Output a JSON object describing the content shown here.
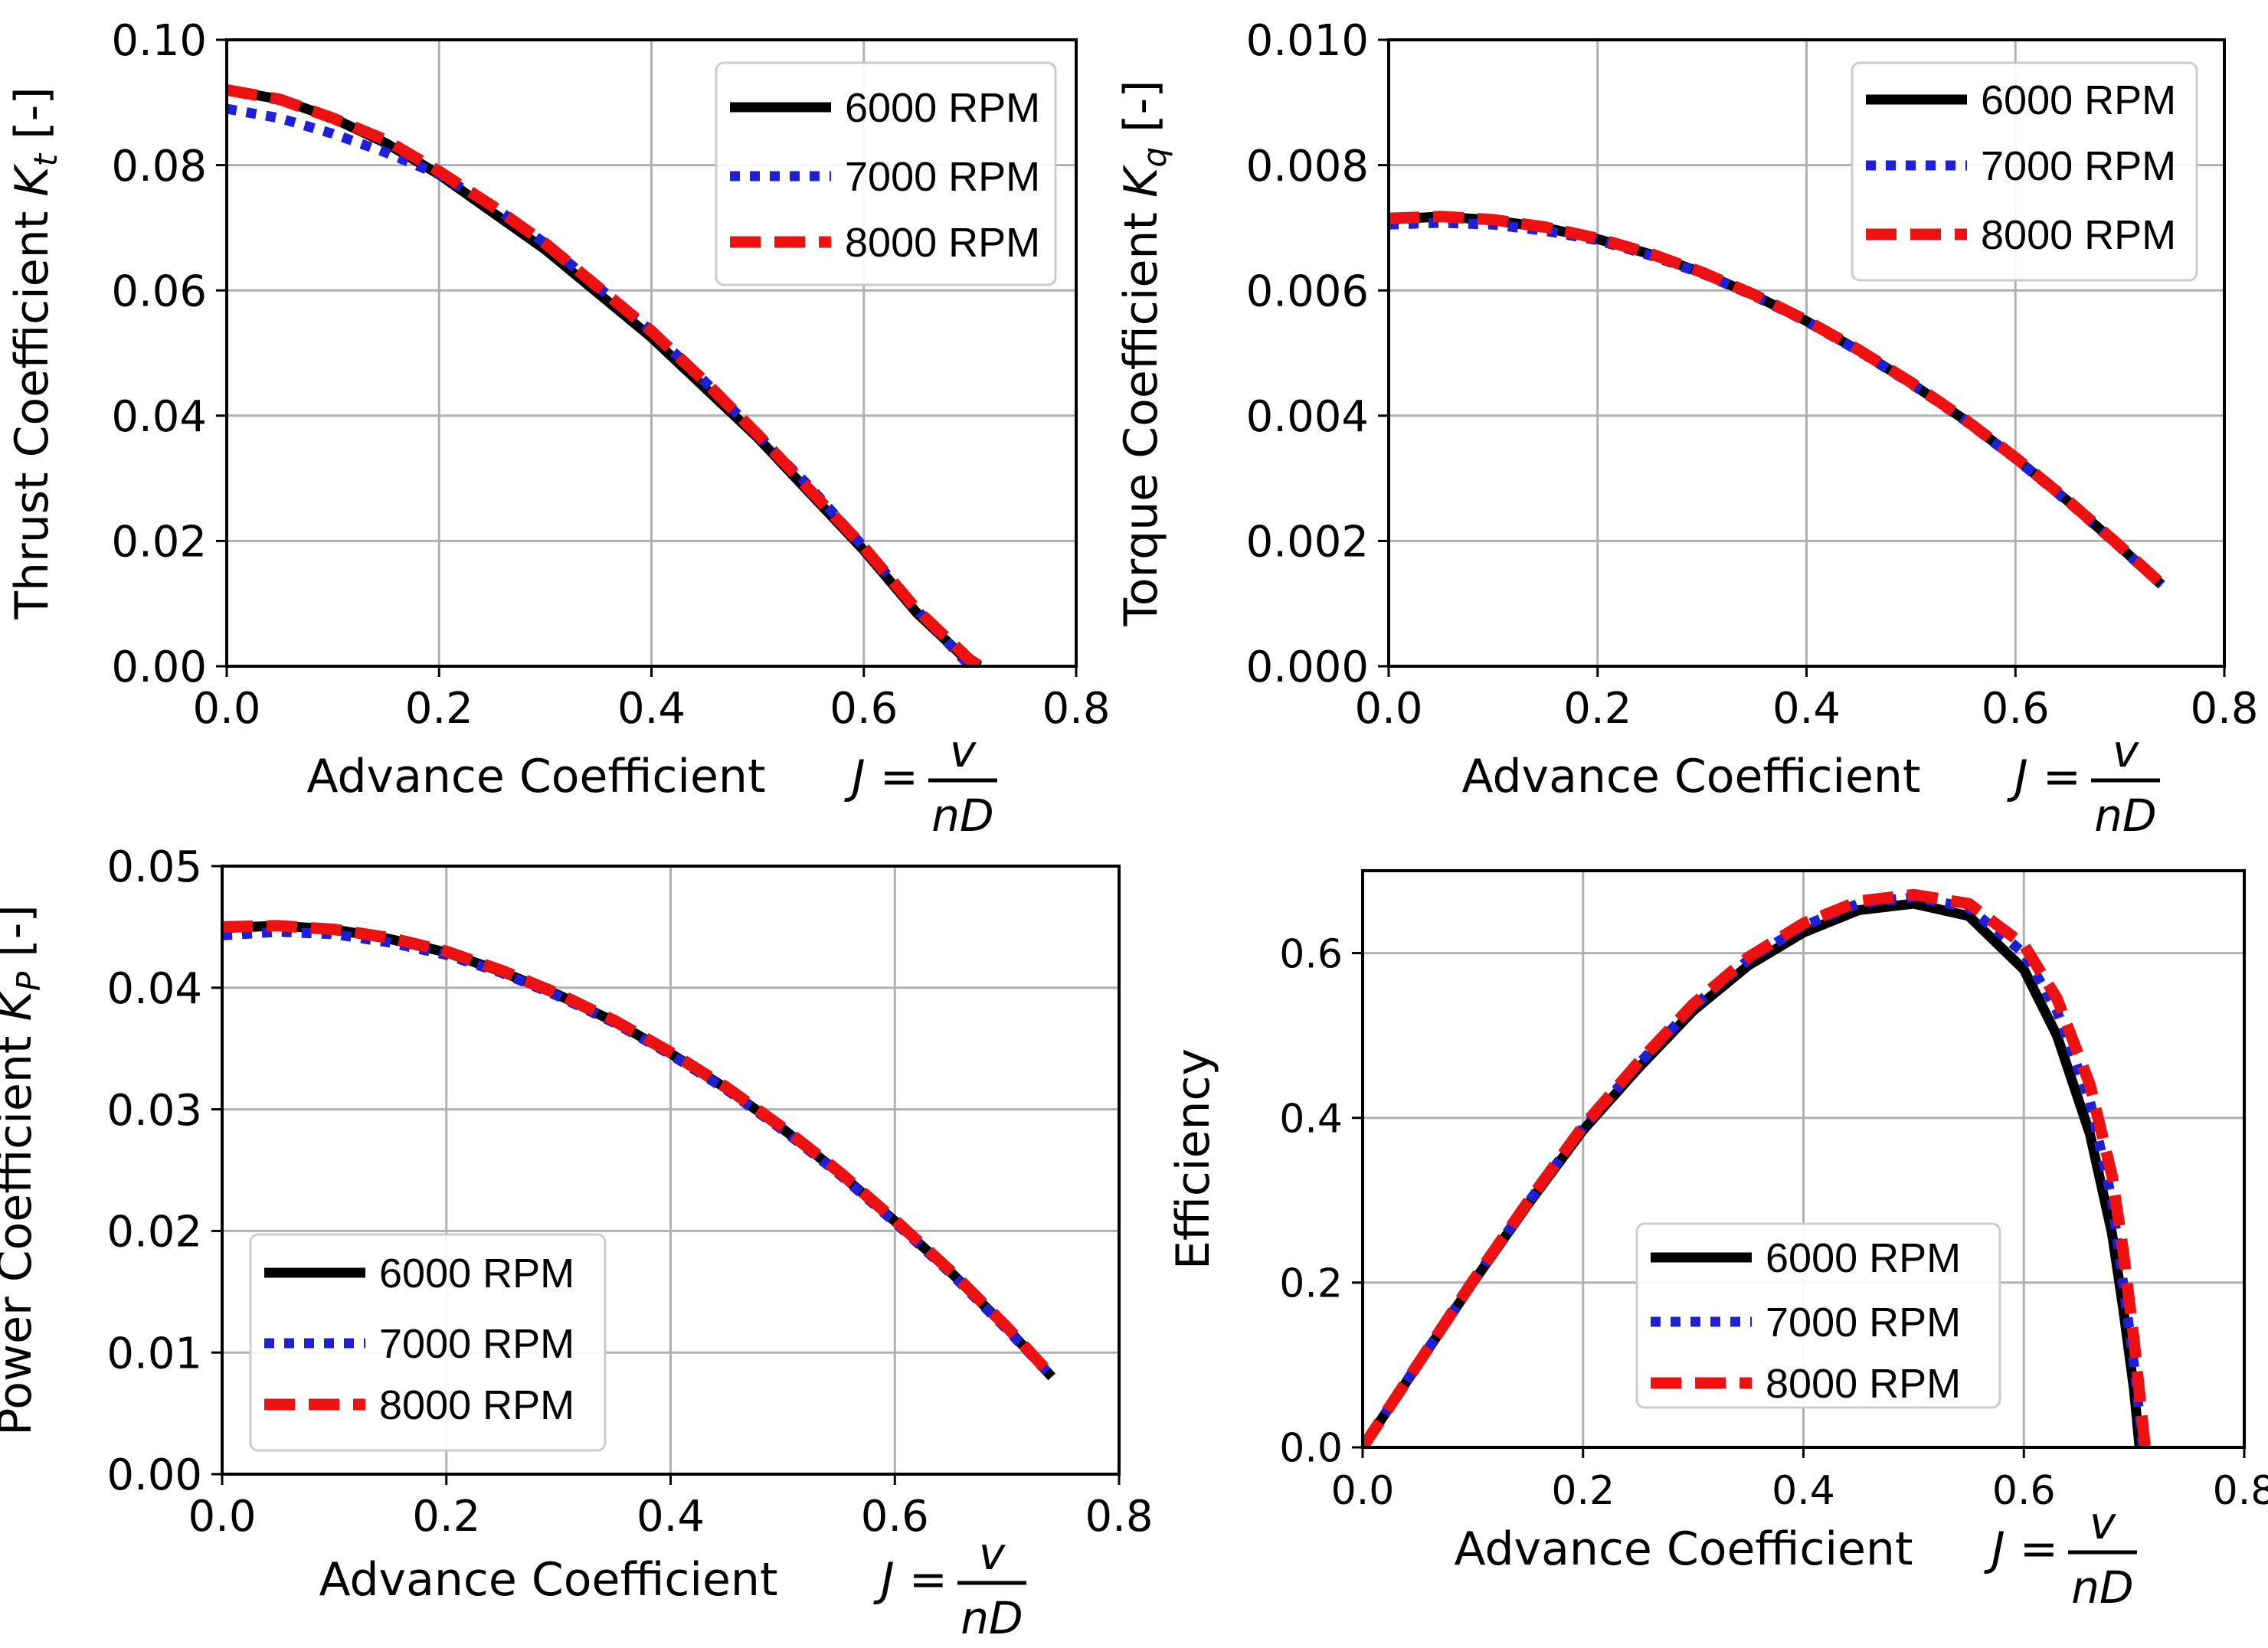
{
  "colors": {
    "rpm6000": "#000000",
    "rpm7000": "#1f1fd6",
    "rpm8000": "#ee1111",
    "grid": "#b0b0b0"
  },
  "formula": {
    "lhs": "J =",
    "num": "v",
    "den": "nD"
  },
  "chart_data": [
    {
      "type": "line",
      "title": "",
      "xlabel": "Advance Coefficient",
      "ylabel_main": "Thrust Coefficient ",
      "ylabel_sym": "K",
      "ylabel_sub": "t",
      "ylabel_unit": " [-]",
      "xlim": [
        0,
        0.8
      ],
      "ylim": [
        0,
        0.1
      ],
      "xticks": [
        "0.0",
        "0.2",
        "0.4",
        "0.6",
        "0.8"
      ],
      "yticks": [
        "0.00",
        "0.02",
        "0.04",
        "0.06",
        "0.08",
        "0.10"
      ],
      "grid": true,
      "legend": "top-right",
      "series": [
        {
          "name": "6000 RPM",
          "style": "solid",
          "x": [
            0,
            0.05,
            0.1,
            0.15,
            0.2,
            0.25,
            0.3,
            0.35,
            0.4,
            0.45,
            0.5,
            0.55,
            0.6,
            0.65,
            0.7,
            0.71
          ],
          "y": [
            0.092,
            0.0905,
            0.0875,
            0.0835,
            0.0785,
            0.0725,
            0.0665,
            0.0595,
            0.0525,
            0.0445,
            0.0365,
            0.0275,
            0.0185,
            0.0085,
            0.0005,
            0
          ]
        },
        {
          "name": "7000 RPM",
          "style": "dotted",
          "x": [
            0,
            0.05,
            0.1,
            0.15,
            0.2,
            0.25,
            0.3,
            0.35,
            0.4,
            0.45,
            0.5,
            0.55,
            0.6,
            0.65,
            0.7
          ],
          "y": [
            0.089,
            0.0875,
            0.085,
            0.082,
            0.0785,
            0.0735,
            0.0675,
            0.0605,
            0.0535,
            0.0455,
            0.037,
            0.0285,
            0.019,
            0.009,
            0
          ]
        },
        {
          "name": "8000 RPM",
          "style": "dashed",
          "x": [
            0,
            0.05,
            0.1,
            0.15,
            0.2,
            0.25,
            0.3,
            0.35,
            0.4,
            0.45,
            0.5,
            0.55,
            0.6,
            0.65,
            0.7,
            0.71
          ],
          "y": [
            0.092,
            0.0905,
            0.0875,
            0.084,
            0.079,
            0.0735,
            0.0675,
            0.0605,
            0.0535,
            0.0455,
            0.037,
            0.028,
            0.019,
            0.009,
            0.001,
            0
          ]
        }
      ]
    },
    {
      "type": "line",
      "title": "",
      "xlabel": "Advance Coefficient",
      "ylabel_main": "Torque Coefficient ",
      "ylabel_sym": "K",
      "ylabel_sub": "q",
      "ylabel_unit": " [-]",
      "xlim": [
        0,
        0.8
      ],
      "ylim": [
        0,
        0.01
      ],
      "xticks": [
        "0.0",
        "0.2",
        "0.4",
        "0.6",
        "0.8"
      ],
      "yticks": [
        "0.000",
        "0.002",
        "0.004",
        "0.006",
        "0.008",
        "0.010"
      ],
      "grid": true,
      "legend": "top-right",
      "series": [
        {
          "name": "6000 RPM",
          "style": "solid",
          "x": [
            0,
            0.05,
            0.1,
            0.15,
            0.2,
            0.25,
            0.3,
            0.35,
            0.4,
            0.45,
            0.5,
            0.55,
            0.6,
            0.65,
            0.7,
            0.74
          ],
          "y": [
            0.00713,
            0.00718,
            0.00712,
            0.007,
            0.00682,
            0.00658,
            0.00628,
            0.00592,
            0.00551,
            0.00504,
            0.00452,
            0.00395,
            0.00332,
            0.00264,
            0.00191,
            0.0013
          ]
        },
        {
          "name": "7000 RPM",
          "style": "dotted",
          "x": [
            0,
            0.05,
            0.1,
            0.15,
            0.2,
            0.25,
            0.3,
            0.35,
            0.4,
            0.45,
            0.5,
            0.55,
            0.6,
            0.65,
            0.7,
            0.74
          ],
          "y": [
            0.00705,
            0.00708,
            0.00705,
            0.00695,
            0.0068,
            0.00656,
            0.00627,
            0.00591,
            0.0055,
            0.00503,
            0.00451,
            0.00394,
            0.00331,
            0.00263,
            0.0019,
            0.0013
          ]
        },
        {
          "name": "8000 RPM",
          "style": "dashed",
          "x": [
            0,
            0.05,
            0.1,
            0.15,
            0.2,
            0.25,
            0.3,
            0.35,
            0.4,
            0.45,
            0.5,
            0.55,
            0.6,
            0.65,
            0.7,
            0.74
          ],
          "y": [
            0.00715,
            0.00718,
            0.00713,
            0.00701,
            0.00683,
            0.00659,
            0.00629,
            0.00593,
            0.00552,
            0.00505,
            0.00453,
            0.00396,
            0.00333,
            0.00265,
            0.00192,
            0.00131
          ]
        }
      ]
    },
    {
      "type": "line",
      "title": "",
      "xlabel": "Advance Coefficient",
      "ylabel_main": "Power Coefficient ",
      "ylabel_sym": "K",
      "ylabel_sub": "P",
      "ylabel_unit": " [-]",
      "xlim": [
        0,
        0.8
      ],
      "ylim": [
        0,
        0.05
      ],
      "xticks": [
        "0.0",
        "0.2",
        "0.4",
        "0.6",
        "0.8"
      ],
      "yticks": [
        "0.00",
        "0.01",
        "0.02",
        "0.03",
        "0.04",
        "0.05"
      ],
      "grid": true,
      "legend": "lower-left",
      "series": [
        {
          "name": "6000 RPM",
          "style": "solid",
          "x": [
            0,
            0.05,
            0.1,
            0.15,
            0.2,
            0.25,
            0.3,
            0.35,
            0.4,
            0.45,
            0.5,
            0.55,
            0.6,
            0.65,
            0.7,
            0.74
          ],
          "y": [
            0.0449,
            0.0451,
            0.0448,
            0.044,
            0.0429,
            0.0413,
            0.0394,
            0.0372,
            0.0346,
            0.0317,
            0.0284,
            0.0248,
            0.0208,
            0.0166,
            0.012,
            0.008
          ]
        },
        {
          "name": "7000 RPM",
          "style": "dotted",
          "x": [
            0,
            0.05,
            0.1,
            0.15,
            0.2,
            0.25,
            0.3,
            0.35,
            0.4,
            0.45,
            0.5,
            0.55,
            0.6,
            0.65,
            0.7,
            0.74
          ],
          "y": [
            0.0443,
            0.0446,
            0.0444,
            0.0437,
            0.0427,
            0.0412,
            0.0393,
            0.0371,
            0.0345,
            0.0316,
            0.0283,
            0.0247,
            0.0207,
            0.0165,
            0.0119,
            0.008
          ]
        },
        {
          "name": "8000 RPM",
          "style": "dashed",
          "x": [
            0,
            0.05,
            0.1,
            0.15,
            0.2,
            0.25,
            0.3,
            0.35,
            0.4,
            0.45,
            0.5,
            0.55,
            0.6,
            0.65,
            0.7,
            0.74
          ],
          "y": [
            0.045,
            0.0451,
            0.0448,
            0.0441,
            0.043,
            0.0414,
            0.0395,
            0.0373,
            0.0347,
            0.0318,
            0.0285,
            0.0249,
            0.0209,
            0.0167,
            0.0121,
            0.0081
          ]
        }
      ]
    },
    {
      "type": "line",
      "title": "",
      "xlabel": "Advance Coefficient",
      "ylabel_main": "Efficiency",
      "ylabel_sym": "",
      "ylabel_sub": "",
      "ylabel_unit": "",
      "xlim": [
        0,
        0.8
      ],
      "ylim": [
        0,
        0.7
      ],
      "xticks": [
        "0.0",
        "0.2",
        "0.4",
        "0.6",
        "0.8"
      ],
      "yticks": [
        "0.0",
        "0.2",
        "0.4",
        "0.6"
      ],
      "ytick_values": [
        0,
        0.2,
        0.4,
        0.6
      ],
      "grid": true,
      "legend": "lower-center",
      "series": [
        {
          "name": "6000 RPM",
          "style": "solid",
          "x": [
            0,
            0.05,
            0.1,
            0.15,
            0.2,
            0.25,
            0.3,
            0.35,
            0.4,
            0.45,
            0.5,
            0.55,
            0.6,
            0.63,
            0.66,
            0.68,
            0.69,
            0.7,
            0.705
          ],
          "y": [
            0,
            0.1,
            0.2,
            0.295,
            0.385,
            0.46,
            0.53,
            0.585,
            0.625,
            0.652,
            0.66,
            0.645,
            0.58,
            0.5,
            0.38,
            0.26,
            0.17,
            0.07,
            0
          ]
        },
        {
          "name": "7000 RPM",
          "style": "dotted",
          "x": [
            0,
            0.05,
            0.1,
            0.15,
            0.2,
            0.25,
            0.3,
            0.35,
            0.4,
            0.45,
            0.5,
            0.55,
            0.6,
            0.63,
            0.66,
            0.68,
            0.69,
            0.7,
            0.708
          ],
          "y": [
            0,
            0.101,
            0.201,
            0.297,
            0.388,
            0.465,
            0.535,
            0.592,
            0.633,
            0.66,
            0.668,
            0.655,
            0.6,
            0.53,
            0.42,
            0.3,
            0.2,
            0.1,
            0
          ]
        },
        {
          "name": "8000 RPM",
          "style": "dashed",
          "x": [
            0,
            0.05,
            0.1,
            0.15,
            0.2,
            0.25,
            0.3,
            0.35,
            0.4,
            0.45,
            0.5,
            0.55,
            0.6,
            0.63,
            0.66,
            0.68,
            0.69,
            0.7,
            0.71
          ],
          "y": [
            0,
            0.101,
            0.202,
            0.298,
            0.39,
            0.467,
            0.538,
            0.595,
            0.636,
            0.663,
            0.671,
            0.66,
            0.61,
            0.545,
            0.44,
            0.33,
            0.24,
            0.13,
            0
          ]
        }
      ]
    }
  ]
}
